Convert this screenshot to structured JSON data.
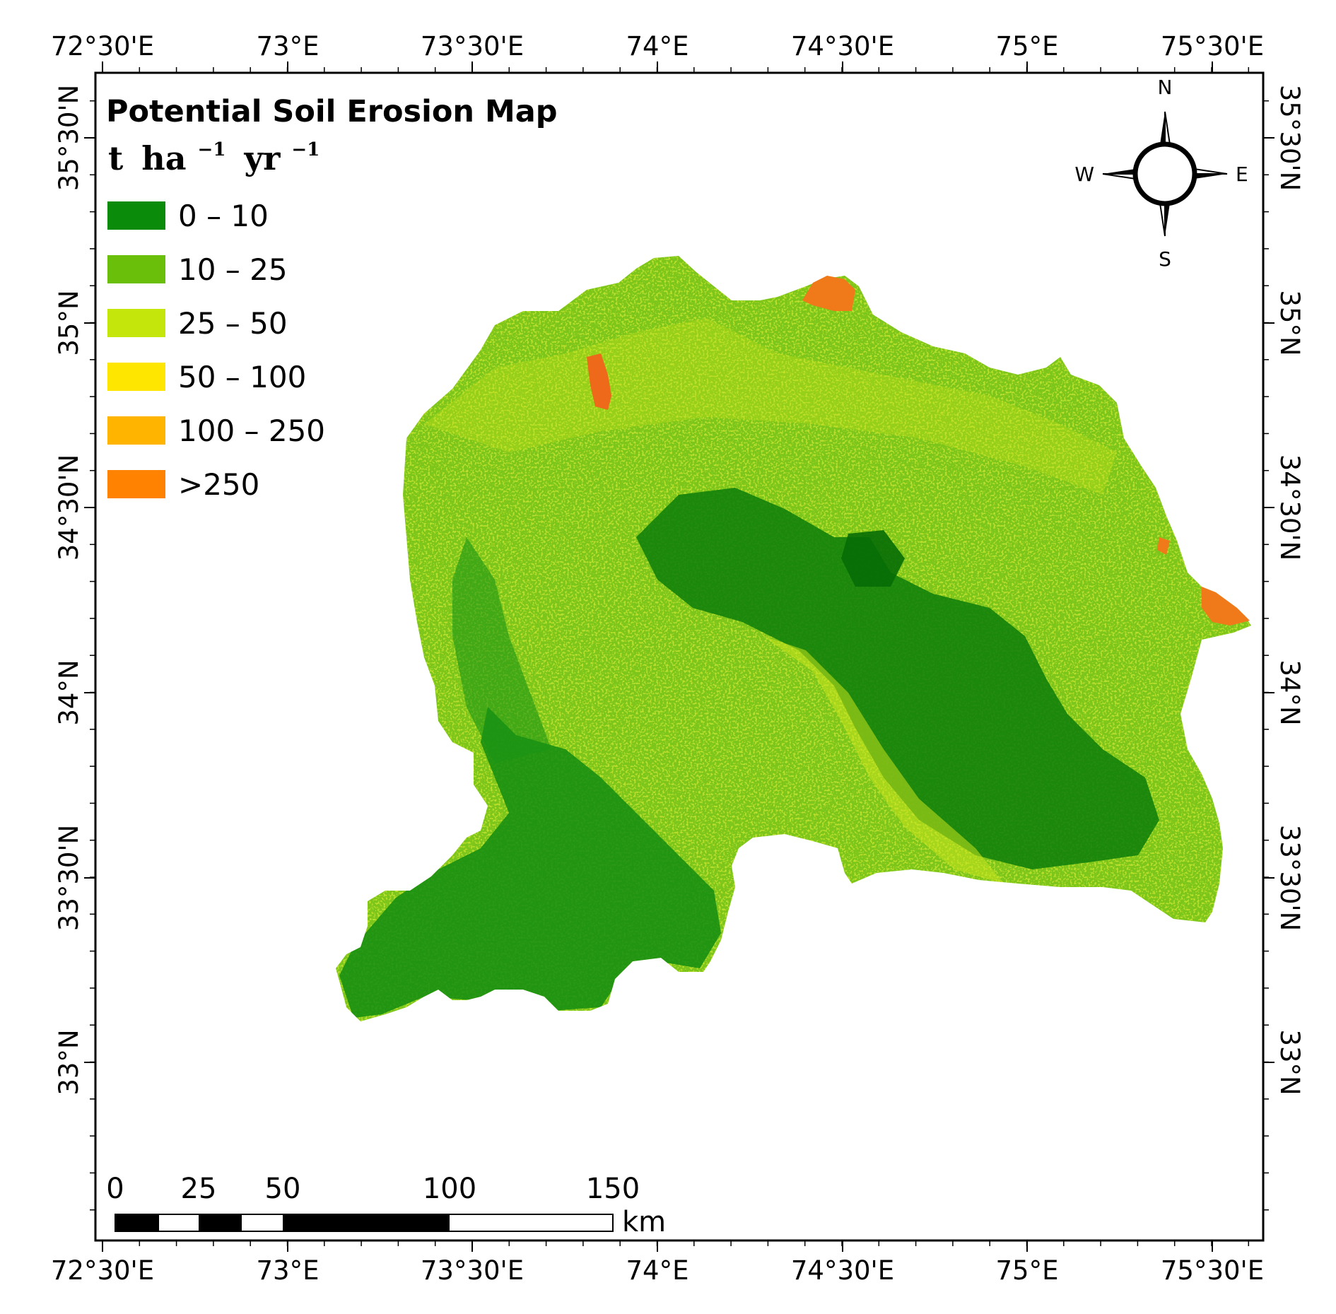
{
  "legend": {
    "title": "Potential Soil Erosion Map",
    "unit": {
      "t": "t",
      "ha": "ha",
      "exp1": "−1",
      "yr": "yr",
      "exp2": "−1"
    },
    "classes": [
      {
        "label": "0 – 10",
        "color": "#0a8c0a"
      },
      {
        "label": "10 – 25",
        "color": "#6abf0a"
      },
      {
        "label": "25 – 50",
        "color": "#c5e60a"
      },
      {
        "label": "50 – 100",
        "color": "#ffe600"
      },
      {
        "label": "100 – 250",
        "color": "#ffb400"
      },
      {
        "label": ">250",
        "color": "#ff8200"
      }
    ]
  },
  "axes": {
    "lon_ticks": [
      "72°30'E",
      "73°E",
      "73°30'E",
      "74°E",
      "74°30'E",
      "75°E",
      "75°30'E"
    ],
    "lat_ticks": [
      "35°30'N",
      "35°N",
      "34°30'N",
      "34°N",
      "33°30'N",
      "33°N"
    ]
  },
  "compass": {
    "north": "N",
    "south": "S",
    "east": "E",
    "west": "W"
  },
  "scale_bar": {
    "labels": [
      "0",
      "25",
      "50",
      "100",
      "150"
    ],
    "unit": "km"
  }
}
